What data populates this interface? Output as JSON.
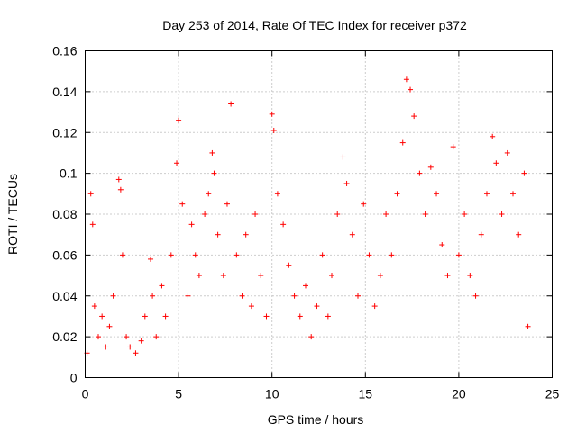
{
  "chart_data": {
    "type": "scatter",
    "title": "Day 253 of 2014, Rate Of TEC Index for receiver p372",
    "xlabel": "GPS time / hours",
    "ylabel": "ROTI / TECUs",
    "xlim": [
      0,
      25
    ],
    "ylim": [
      0,
      0.16
    ],
    "xticks": [
      "0",
      "5",
      "10",
      "15",
      "20",
      "25"
    ],
    "yticks": [
      "0",
      "0.02",
      "0.04",
      "0.06",
      "0.08",
      "0.1",
      "0.12",
      "0.14",
      "0.16"
    ],
    "grid": true,
    "marker": "+",
    "color": "#ff0000",
    "x": [
      0.1,
      0.3,
      0.4,
      0.5,
      0.7,
      0.9,
      1.1,
      1.3,
      1.5,
      1.8,
      1.9,
      2.0,
      2.2,
      2.4,
      2.7,
      3.0,
      3.2,
      3.5,
      3.6,
      3.8,
      4.1,
      4.3,
      4.6,
      4.9,
      5.0,
      5.2,
      5.5,
      5.7,
      5.9,
      6.1,
      6.4,
      6.6,
      6.8,
      6.9,
      7.1,
      7.4,
      7.6,
      7.8,
      8.1,
      8.4,
      8.6,
      8.9,
      9.1,
      9.4,
      9.7,
      10.0,
      10.1,
      10.3,
      10.6,
      10.9,
      11.2,
      11.5,
      11.8,
      12.1,
      12.4,
      12.7,
      13.0,
      13.2,
      13.5,
      13.8,
      14.0,
      14.3,
      14.6,
      14.9,
      15.2,
      15.5,
      15.8,
      16.1,
      16.4,
      16.7,
      17.0,
      17.2,
      17.4,
      17.6,
      17.9,
      18.2,
      18.5,
      18.8,
      19.1,
      19.4,
      19.7,
      20.0,
      20.3,
      20.6,
      20.9,
      21.2,
      21.5,
      21.8,
      22.0,
      22.3,
      22.6,
      22.9,
      23.2,
      23.5,
      23.7
    ],
    "y": [
      0.012,
      0.09,
      0.075,
      0.035,
      0.02,
      0.03,
      0.015,
      0.025,
      0.04,
      0.097,
      0.092,
      0.06,
      0.02,
      0.015,
      0.012,
      0.018,
      0.03,
      0.058,
      0.04,
      0.02,
      0.045,
      0.03,
      0.06,
      0.105,
      0.126,
      0.085,
      0.04,
      0.075,
      0.06,
      0.05,
      0.08,
      0.09,
      0.11,
      0.1,
      0.07,
      0.05,
      0.085,
      0.134,
      0.06,
      0.04,
      0.07,
      0.035,
      0.08,
      0.05,
      0.03,
      0.129,
      0.121,
      0.09,
      0.075,
      0.055,
      0.04,
      0.03,
      0.045,
      0.02,
      0.035,
      0.06,
      0.03,
      0.05,
      0.08,
      0.108,
      0.095,
      0.07,
      0.04,
      0.085,
      0.06,
      0.035,
      0.05,
      0.08,
      0.06,
      0.09,
      0.115,
      0.146,
      0.141,
      0.128,
      0.1,
      0.08,
      0.103,
      0.09,
      0.065,
      0.05,
      0.113,
      0.06,
      0.08,
      0.05,
      0.04,
      0.07,
      0.09,
      0.118,
      0.105,
      0.08,
      0.11,
      0.09,
      0.07,
      0.1,
      0.025
    ]
  }
}
